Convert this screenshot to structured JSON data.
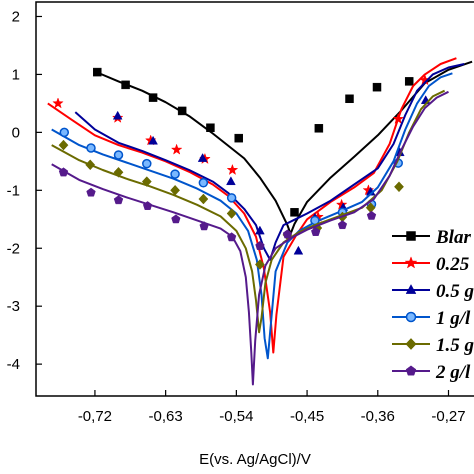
{
  "chart_data": {
    "type": "line",
    "title": "",
    "xlabel": "E(vs. Ag/AgCl)/V",
    "ylabel": "",
    "xlim": [
      -0.795,
      -0.235
    ],
    "ylim": [
      -4.55,
      2.25
    ],
    "x_ticks": [
      -0.72,
      -0.63,
      -0.54,
      -0.45,
      -0.36,
      -0.27
    ],
    "x_tick_labels": [
      "-0,72",
      "-0,63",
      "-0,54",
      "-0,45",
      "-0,36",
      "-0,27"
    ],
    "y_ticks": [
      2,
      1,
      0,
      -1,
      -2,
      -3,
      -4
    ],
    "y_tick_labels": [
      "2",
      "1",
      "0",
      "-1",
      "-2",
      "-3",
      "-4"
    ],
    "grid": false,
    "legend_position": "right",
    "series": [
      {
        "name": "Blank",
        "legend_text": "Blar",
        "color": "#000000",
        "marker": "square",
        "points": [
          [
            -0.72,
            1.05
          ],
          [
            -0.69,
            0.88
          ],
          [
            -0.66,
            0.72
          ],
          [
            -0.63,
            0.52
          ],
          [
            -0.6,
            0.28
          ],
          [
            -0.57,
            -0.02
          ],
          [
            -0.53,
            -0.45
          ],
          [
            -0.51,
            -0.78
          ],
          [
            -0.49,
            -1.18
          ],
          [
            -0.475,
            -1.6
          ],
          [
            -0.471,
            -1.75
          ],
          [
            -0.466,
            -1.58
          ],
          [
            -0.45,
            -1.2
          ],
          [
            -0.42,
            -0.78
          ],
          [
            -0.39,
            -0.42
          ],
          [
            -0.36,
            -0.05
          ],
          [
            -0.33,
            0.38
          ],
          [
            -0.3,
            0.85
          ],
          [
            -0.27,
            1.08
          ],
          [
            -0.24,
            1.22
          ]
        ],
        "markers": [
          [
            -0.717,
            1.04
          ],
          [
            -0.681,
            0.82
          ],
          [
            -0.646,
            0.6
          ],
          [
            -0.609,
            0.37
          ],
          [
            -0.573,
            0.08
          ],
          [
            -0.537,
            -0.1
          ],
          [
            -0.466,
            -1.38
          ],
          [
            -0.435,
            0.07
          ],
          [
            -0.396,
            0.58
          ],
          [
            -0.361,
            0.78
          ],
          [
            -0.32,
            0.88
          ]
        ]
      },
      {
        "name": "0.25 g/L",
        "legend_text": "0.25",
        "color": "#ff0000",
        "marker": "star",
        "points": [
          [
            -0.78,
            0.5
          ],
          [
            -0.75,
            0.22
          ],
          [
            -0.72,
            -0.05
          ],
          [
            -0.69,
            -0.22
          ],
          [
            -0.66,
            -0.35
          ],
          [
            -0.63,
            -0.5
          ],
          [
            -0.6,
            -0.68
          ],
          [
            -0.57,
            -0.9
          ],
          [
            -0.55,
            -1.1
          ],
          [
            -0.53,
            -1.4
          ],
          [
            -0.515,
            -1.8
          ],
          [
            -0.505,
            -2.35
          ],
          [
            -0.497,
            -3.1
          ],
          [
            -0.493,
            -3.8
          ],
          [
            -0.489,
            -3.15
          ],
          [
            -0.48,
            -2.15
          ],
          [
            -0.465,
            -1.8
          ],
          [
            -0.45,
            -1.5
          ],
          [
            -0.42,
            -1.2
          ],
          [
            -0.39,
            -0.95
          ],
          [
            -0.365,
            -0.7
          ],
          [
            -0.345,
            -0.2
          ],
          [
            -0.33,
            0.4
          ],
          [
            -0.315,
            0.8
          ],
          [
            -0.3,
            1.0
          ],
          [
            -0.28,
            1.18
          ],
          [
            -0.26,
            1.28
          ]
        ],
        "markers": [
          [
            -0.767,
            0.5
          ],
          [
            -0.691,
            0.25
          ],
          [
            -0.649,
            -0.14
          ],
          [
            -0.616,
            -0.3
          ],
          [
            -0.58,
            -0.46
          ],
          [
            -0.545,
            -0.65
          ],
          [
            -0.436,
            -1.46
          ],
          [
            -0.406,
            -1.25
          ],
          [
            -0.372,
            -1.0
          ],
          [
            -0.334,
            0.23
          ],
          [
            -0.3,
            0.9
          ]
        ]
      },
      {
        "name": "0.5 g/L",
        "legend_text": "0.5 g",
        "color": "#000099",
        "marker": "triangle",
        "points": [
          [
            -0.745,
            0.35
          ],
          [
            -0.72,
            0.05
          ],
          [
            -0.69,
            -0.18
          ],
          [
            -0.66,
            -0.32
          ],
          [
            -0.63,
            -0.48
          ],
          [
            -0.6,
            -0.65
          ],
          [
            -0.57,
            -0.85
          ],
          [
            -0.55,
            -1.05
          ],
          [
            -0.53,
            -1.32
          ],
          [
            -0.515,
            -1.6
          ],
          [
            -0.505,
            -2.0
          ],
          [
            -0.497,
            -2.2
          ],
          [
            -0.49,
            -1.9
          ],
          [
            -0.48,
            -1.6
          ],
          [
            -0.465,
            -1.5
          ],
          [
            -0.45,
            -1.4
          ],
          [
            -0.42,
            -1.18
          ],
          [
            -0.39,
            -0.9
          ],
          [
            -0.36,
            -0.62
          ],
          [
            -0.34,
            -0.2
          ],
          [
            -0.325,
            0.3
          ],
          [
            -0.31,
            0.72
          ],
          [
            -0.29,
            1.0
          ],
          [
            -0.27,
            1.12
          ],
          [
            -0.25,
            1.18
          ]
        ],
        "markers": [
          [
            -0.691,
            0.28
          ],
          [
            -0.646,
            -0.15
          ],
          [
            -0.583,
            -0.45
          ],
          [
            -0.547,
            -0.85
          ],
          [
            -0.51,
            -1.7
          ],
          [
            -0.461,
            -2.05
          ],
          [
            -0.44,
            -1.48
          ],
          [
            -0.404,
            -1.3
          ],
          [
            -0.369,
            -1.03
          ],
          [
            -0.332,
            -0.35
          ],
          [
            -0.299,
            0.55
          ]
        ]
      },
      {
        "name": "1 g/L",
        "legend_text": "1 g/l",
        "color": "#0055cc",
        "marker": "circle",
        "points": [
          [
            -0.775,
            0.05
          ],
          [
            -0.74,
            -0.22
          ],
          [
            -0.71,
            -0.38
          ],
          [
            -0.68,
            -0.52
          ],
          [
            -0.65,
            -0.66
          ],
          [
            -0.62,
            -0.8
          ],
          [
            -0.59,
            -0.97
          ],
          [
            -0.56,
            -1.18
          ],
          [
            -0.54,
            -1.4
          ],
          [
            -0.525,
            -1.7
          ],
          [
            -0.514,
            -2.2
          ],
          [
            -0.508,
            -2.8
          ],
          [
            -0.504,
            -3.55
          ],
          [
            -0.5,
            -3.9
          ],
          [
            -0.496,
            -3.3
          ],
          [
            -0.49,
            -2.4
          ],
          [
            -0.475,
            -1.9
          ],
          [
            -0.46,
            -1.7
          ],
          [
            -0.44,
            -1.55
          ],
          [
            -0.41,
            -1.38
          ],
          [
            -0.38,
            -1.2
          ],
          [
            -0.36,
            -0.95
          ],
          [
            -0.34,
            -0.5
          ],
          [
            -0.325,
            0.05
          ],
          [
            -0.31,
            0.5
          ],
          [
            -0.295,
            0.8
          ],
          [
            -0.28,
            0.95
          ],
          [
            -0.265,
            1.02
          ]
        ],
        "markers": [
          [
            -0.759,
            0.0
          ],
          [
            -0.725,
            -0.27
          ],
          [
            -0.69,
            -0.39
          ],
          [
            -0.654,
            -0.54
          ],
          [
            -0.618,
            -0.72
          ],
          [
            -0.582,
            -0.87
          ],
          [
            -0.546,
            -1.13
          ],
          [
            -0.44,
            -1.52
          ],
          [
            -0.405,
            -1.38
          ],
          [
            -0.368,
            -1.24
          ],
          [
            -0.334,
            -0.53
          ]
        ]
      },
      {
        "name": "1.5 g/L",
        "legend_text": "1.5 g",
        "color": "#6b6b00",
        "marker": "diamond",
        "points": [
          [
            -0.775,
            -0.22
          ],
          [
            -0.74,
            -0.48
          ],
          [
            -0.71,
            -0.65
          ],
          [
            -0.68,
            -0.8
          ],
          [
            -0.65,
            -0.93
          ],
          [
            -0.62,
            -1.08
          ],
          [
            -0.59,
            -1.25
          ],
          [
            -0.56,
            -1.45
          ],
          [
            -0.54,
            -1.7
          ],
          [
            -0.528,
            -2.0
          ],
          [
            -0.52,
            -2.4
          ],
          [
            -0.515,
            -2.9
          ],
          [
            -0.511,
            -3.45
          ],
          [
            -0.508,
            -3.2
          ],
          [
            -0.503,
            -2.6
          ],
          [
            -0.495,
            -2.2
          ],
          [
            -0.48,
            -1.9
          ],
          [
            -0.46,
            -1.72
          ],
          [
            -0.44,
            -1.6
          ],
          [
            -0.41,
            -1.45
          ],
          [
            -0.38,
            -1.3
          ],
          [
            -0.355,
            -1.0
          ],
          [
            -0.335,
            -0.5
          ],
          [
            -0.32,
            0.0
          ],
          [
            -0.305,
            0.4
          ],
          [
            -0.29,
            0.62
          ],
          [
            -0.275,
            0.72
          ]
        ],
        "markers": [
          [
            -0.76,
            -0.22
          ],
          [
            -0.726,
            -0.56
          ],
          [
            -0.69,
            -0.69
          ],
          [
            -0.654,
            -0.85
          ],
          [
            -0.618,
            -1.0
          ],
          [
            -0.582,
            -1.15
          ],
          [
            -0.546,
            -1.4
          ],
          [
            -0.51,
            -2.28
          ],
          [
            -0.475,
            -1.77
          ],
          [
            -0.437,
            -1.65
          ],
          [
            -0.405,
            -1.46
          ],
          [
            -0.369,
            -1.3
          ],
          [
            -0.333,
            -0.94
          ]
        ]
      },
      {
        "name": "2 g/L",
        "legend_text": "2 g/l",
        "color": "#551a8b",
        "marker": "pentagon",
        "points": [
          [
            -0.775,
            -0.55
          ],
          [
            -0.74,
            -0.82
          ],
          [
            -0.71,
            -0.98
          ],
          [
            -0.68,
            -1.12
          ],
          [
            -0.65,
            -1.25
          ],
          [
            -0.62,
            -1.38
          ],
          [
            -0.59,
            -1.52
          ],
          [
            -0.56,
            -1.66
          ],
          [
            -0.545,
            -1.8
          ],
          [
            -0.535,
            -2.05
          ],
          [
            -0.528,
            -2.5
          ],
          [
            -0.524,
            -3.1
          ],
          [
            -0.521,
            -3.8
          ],
          [
            -0.519,
            -4.35
          ],
          [
            -0.516,
            -3.6
          ],
          [
            -0.511,
            -2.8
          ],
          [
            -0.503,
            -2.3
          ],
          [
            -0.49,
            -2.0
          ],
          [
            -0.47,
            -1.82
          ],
          [
            -0.45,
            -1.68
          ],
          [
            -0.42,
            -1.52
          ],
          [
            -0.39,
            -1.38
          ],
          [
            -0.365,
            -1.15
          ],
          [
            -0.345,
            -0.75
          ],
          [
            -0.33,
            -0.3
          ],
          [
            -0.315,
            0.1
          ],
          [
            -0.3,
            0.42
          ],
          [
            -0.285,
            0.6
          ],
          [
            -0.27,
            0.7
          ]
        ],
        "markers": [
          [
            -0.76,
            -0.69
          ],
          [
            -0.725,
            -1.04
          ],
          [
            -0.69,
            -1.17
          ],
          [
            -0.653,
            -1.27
          ],
          [
            -0.617,
            -1.5
          ],
          [
            -0.581,
            -1.62
          ],
          [
            -0.546,
            -1.81
          ],
          [
            -0.51,
            -1.96
          ],
          [
            -0.475,
            -1.76
          ],
          [
            -0.439,
            -1.72
          ],
          [
            -0.405,
            -1.6
          ],
          [
            -0.368,
            -1.44
          ]
        ]
      }
    ]
  }
}
